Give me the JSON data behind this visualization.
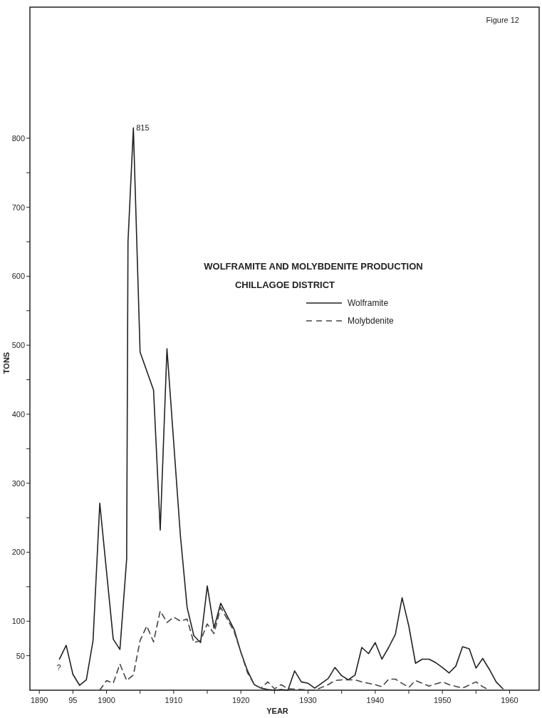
{
  "chart_data": {
    "type": "line",
    "title": "WOLFRAMITE AND MOLYBDENITE PRODUCTION",
    "subtitle": "CHILLAGOE DISTRICT",
    "xlabel": "YEAR",
    "ylabel": "TONS",
    "annotations": [
      "Figure 12",
      {
        "text": "815",
        "x": 1904,
        "y": 815
      },
      {
        "text": "?",
        "x": 1893,
        "y": 45
      }
    ],
    "xlim": [
      1888.6,
      1964.4
    ],
    "ylim": [
      0,
      990
    ],
    "xticks": [
      1890,
      {
        "value": 1895,
        "label": "95"
      },
      1900,
      {
        "value": 1905,
        "label": null
      },
      1910,
      {
        "value": 1915,
        "label": null
      },
      1920,
      {
        "value": 1925,
        "label": null
      },
      1930,
      {
        "value": 1935,
        "label": null
      },
      1940,
      {
        "value": 1945,
        "label": null
      },
      1950,
      {
        "value": 1955,
        "label": null
      },
      1960
    ],
    "yticks": [
      50,
      100,
      {
        "value": 150,
        "label": null
      },
      200,
      {
        "value": 250,
        "label": null
      },
      300,
      {
        "value": 350,
        "label": null
      },
      400,
      {
        "value": 450,
        "label": null
      },
      500,
      {
        "value": 550,
        "label": null
      },
      600,
      {
        "value": 650,
        "label": null
      },
      700,
      {
        "value": 750,
        "label": null
      },
      800
    ],
    "grid": false,
    "legend": "top right",
    "marker": "none",
    "series": [
      {
        "name": "Wolframite",
        "color": "#222222",
        "line_style": "solid",
        "x": [
          1893,
          1894,
          1895,
          1896,
          1897,
          1898,
          1899,
          1901,
          1902,
          1903,
          1903.2,
          1904,
          1905,
          1907,
          1908,
          1909,
          1911,
          1912,
          1913,
          1914,
          1915,
          1916,
          1917,
          1919,
          1920,
          1921,
          1922,
          1923,
          1924,
          1925,
          1926,
          1927,
          1928,
          1929,
          1930,
          1931,
          1933,
          1934,
          1935,
          1936,
          1937,
          1938,
          1939,
          1940,
          1941,
          1942,
          1943,
          1944,
          1945,
          1946,
          1947,
          1948,
          1949,
          1950,
          1951,
          1952,
          1953,
          1954,
          1955,
          1956,
          1957,
          1958,
          1959
        ],
        "values": [
          45,
          65,
          23,
          7,
          15,
          72,
          271,
          74,
          59,
          190,
          650,
          815,
          490,
          435,
          232,
          495,
          224,
          120,
          79,
          69,
          151,
          90,
          126,
          88,
          55,
          28,
          8,
          3,
          1,
          0,
          1,
          0,
          28,
          12,
          10,
          3,
          17,
          33,
          21,
          15,
          22,
          62,
          53,
          69,
          45,
          62,
          81,
          134,
          93,
          39,
          45,
          45,
          40,
          33,
          25,
          35,
          63,
          60,
          32,
          46,
          30,
          12,
          2
        ]
      },
      {
        "name": "Molybdenite",
        "color": "#444444",
        "line_style": "dashed",
        "x": [
          1899,
          1900,
          1901,
          1902,
          1903,
          1904,
          1905,
          1906,
          1907,
          1908,
          1909,
          1910,
          1911,
          1912,
          1913,
          1914,
          1915,
          1916,
          1917,
          1919,
          1920,
          1921,
          1922,
          1923,
          1924,
          1925,
          1926,
          1927,
          1931,
          1933,
          1934,
          1935,
          1937,
          1938,
          1940,
          1941,
          1942,
          1943,
          1944,
          1945,
          1946,
          1948,
          1950,
          1951,
          1953,
          1955,
          1956,
          1957
        ],
        "values": [
          0,
          14,
          10,
          38,
          14,
          22,
          72,
          93,
          70,
          115,
          98,
          106,
          100,
          103,
          69,
          72,
          96,
          82,
          120,
          85,
          55,
          25,
          8,
          3,
          12,
          2,
          8,
          2,
          0,
          8,
          14,
          15,
          15,
          12,
          8,
          5,
          16,
          16,
          10,
          4,
          14,
          6,
          12,
          8,
          3,
          12,
          5,
          0
        ]
      }
    ]
  }
}
